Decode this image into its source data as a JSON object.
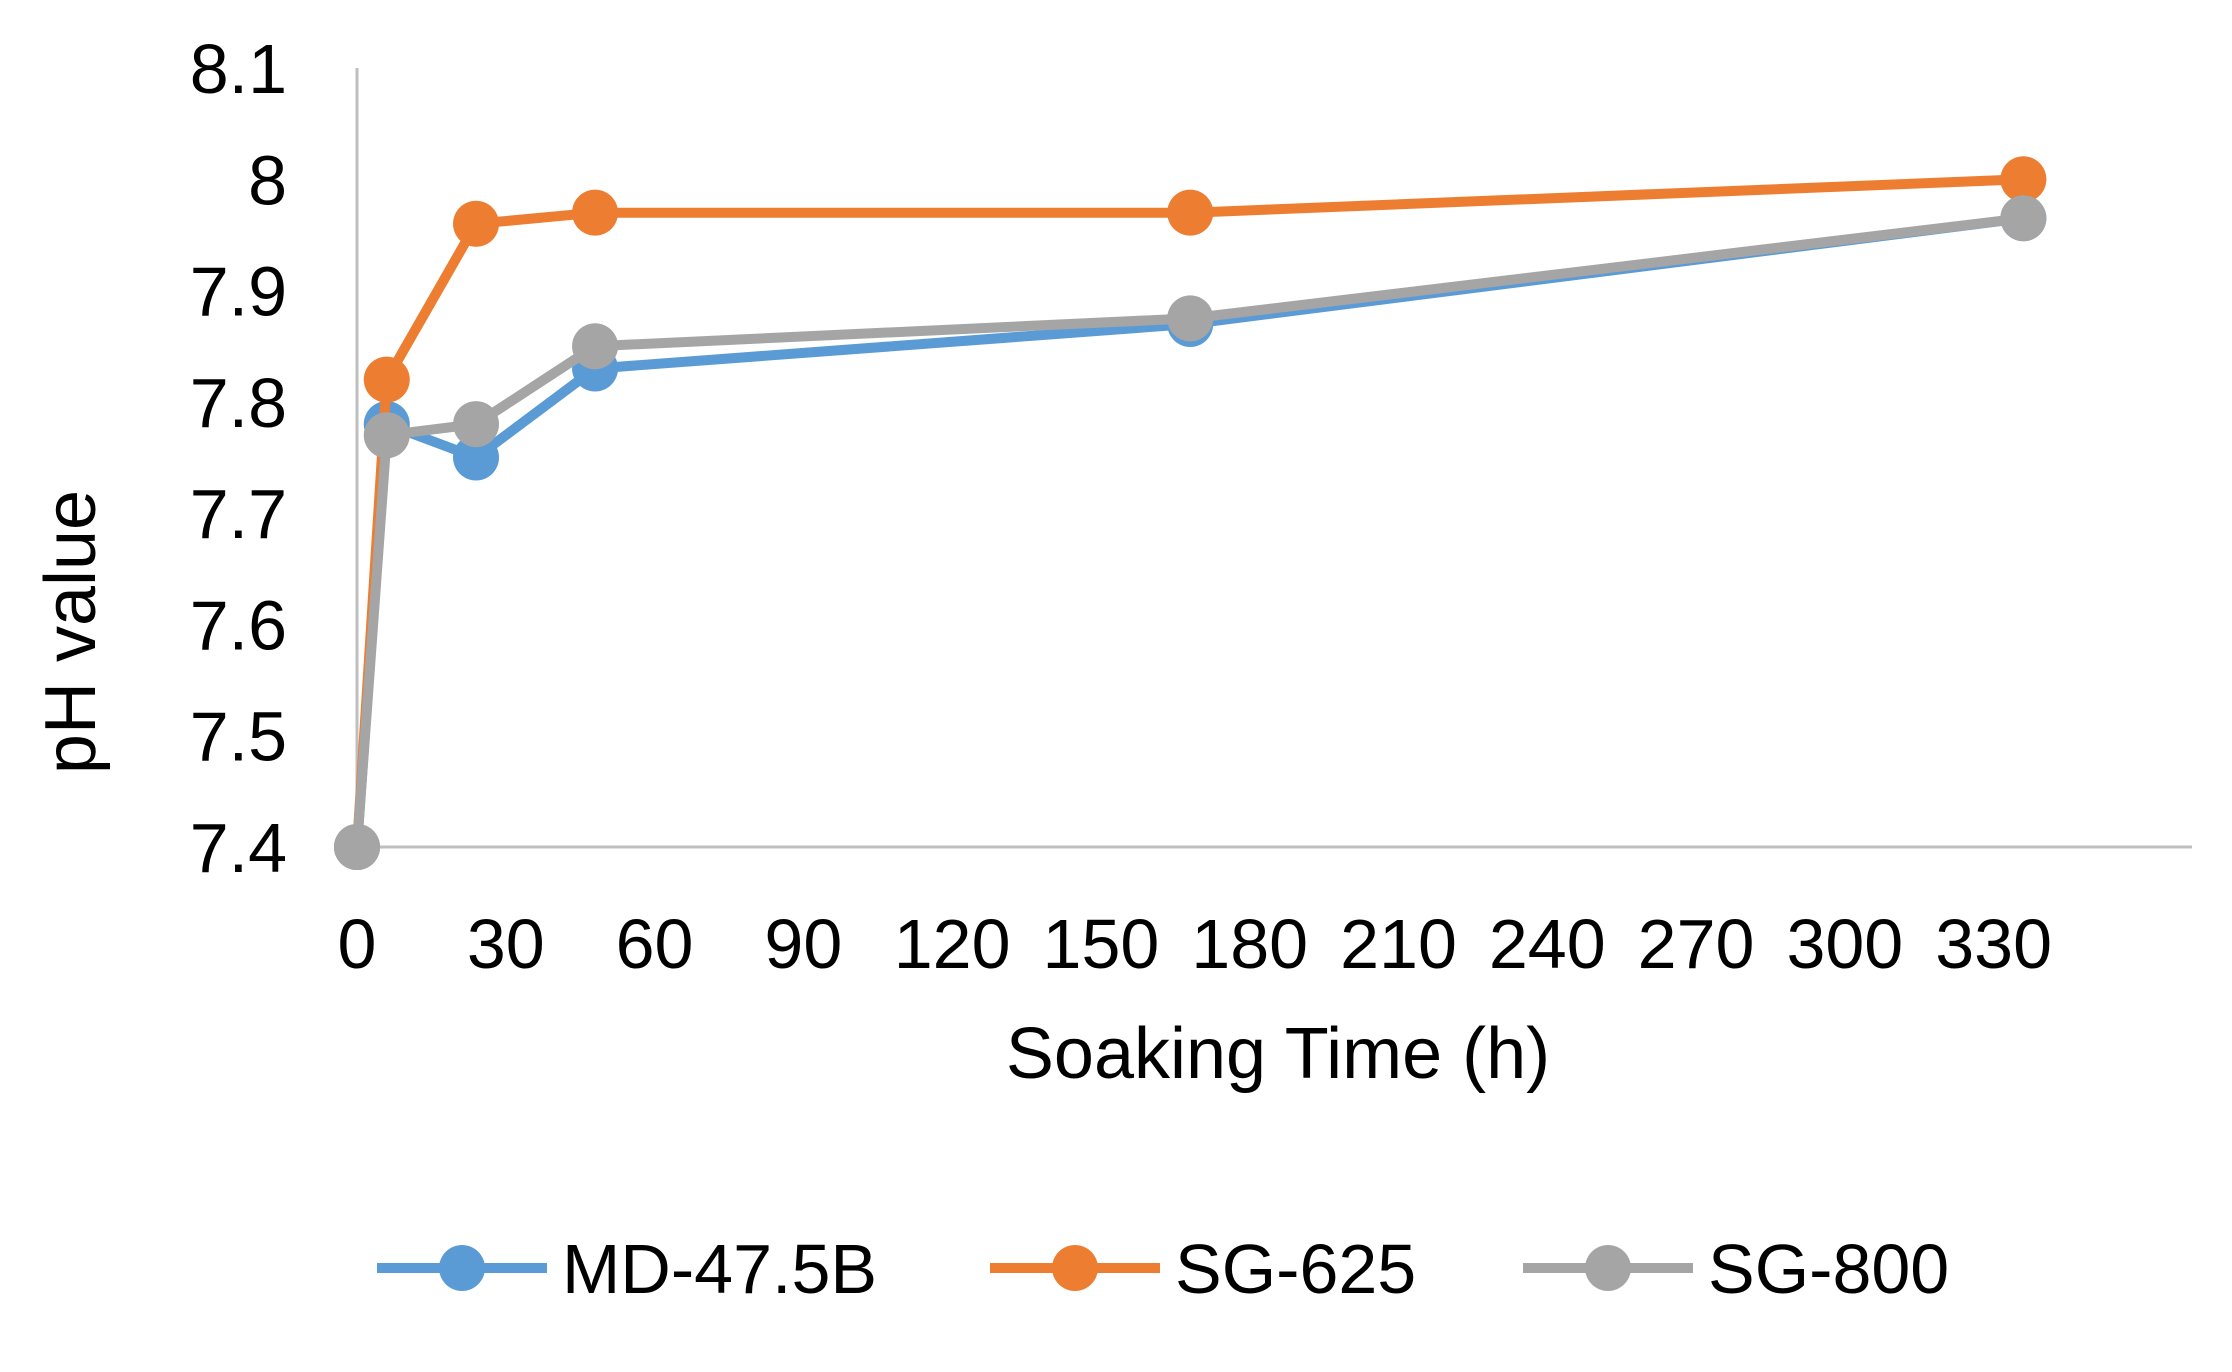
{
  "chart_data": {
    "type": "line",
    "title": "",
    "xlabel": "Soaking Time (h)",
    "ylabel": "pH value",
    "xlim": [
      0,
      370
    ],
    "ylim": [
      7.4,
      8.1
    ],
    "xticks": [
      "0",
      "30",
      "60",
      "90",
      "120",
      "150",
      "180",
      "210",
      "240",
      "270",
      "300",
      "330"
    ],
    "yticks": [
      "7.4",
      "7.5",
      "7.6",
      "7.7",
      "7.8",
      "7.9",
      "8",
      "8.1"
    ],
    "grid": false,
    "legend_position": "bottom",
    "series": [
      {
        "name": "MD-47.5B",
        "color": "#5b9bd5",
        "x": [
          0,
          6,
          24,
          48,
          168,
          336
        ],
        "y": [
          7.4,
          7.78,
          7.75,
          7.83,
          7.87,
          7.965
        ]
      },
      {
        "name": "SG-625",
        "color": "#ed7d31",
        "x": [
          0,
          6,
          24,
          48,
          168,
          336
        ],
        "y": [
          7.4,
          7.82,
          7.96,
          7.97,
          7.97,
          8.0
        ]
      },
      {
        "name": "SG-800",
        "color": "#a5a5a5",
        "x": [
          0,
          6,
          24,
          48,
          168,
          336
        ],
        "y": [
          7.4,
          7.77,
          7.78,
          7.85,
          7.875,
          7.965
        ]
      }
    ]
  }
}
